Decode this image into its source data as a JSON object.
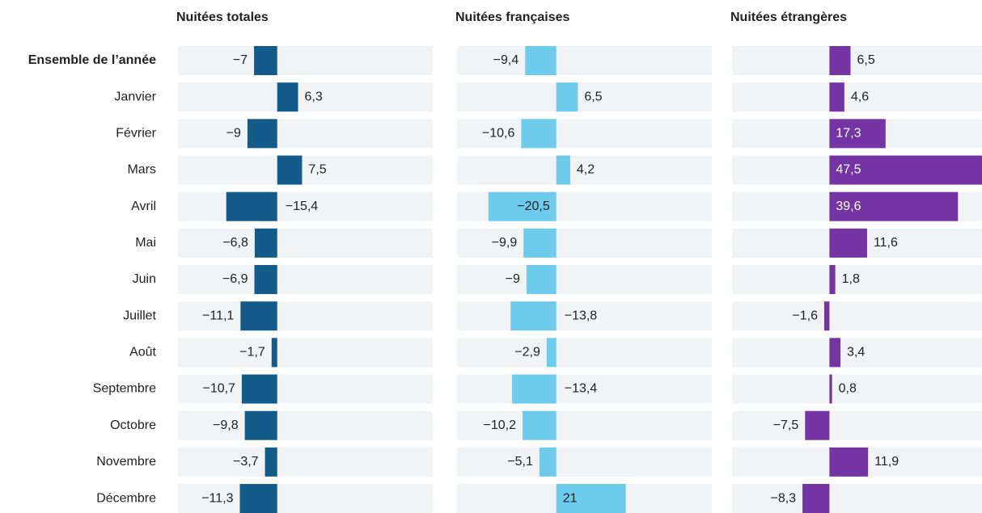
{
  "chart_data": {
    "type": "bar",
    "categories": [
      "Ensemble de l’année",
      "Janvier",
      "Février",
      "Mars",
      "Avril",
      "Mai",
      "Juin",
      "Juillet",
      "Août",
      "Septembre",
      "Octobre",
      "Novembre",
      "Décembre"
    ],
    "xlim": [
      -30,
      47
    ],
    "series": [
      {
        "name": "Nuitées totales",
        "color": "#135b8a",
        "values": [
          -7,
          6.3,
          -9,
          7.5,
          -15.4,
          -6.8,
          -6.9,
          -11.1,
          -1.7,
          -10.7,
          -9.8,
          -3.7,
          -11.3
        ],
        "value_labels": [
          "−7",
          "6,3",
          "−9",
          "7,5",
          "−15,4",
          "−6,8",
          "−6,9",
          "−11,1",
          "−1,7",
          "−10,7",
          "−9,8",
          "−3,7",
          "−11,3"
        ]
      },
      {
        "name": "Nuitées françaises",
        "color": "#6dcbeb",
        "values": [
          -9.4,
          6.5,
          -10.6,
          4.2,
          -20.5,
          -9.9,
          -9,
          -13.8,
          -2.9,
          -13.4,
          -10.2,
          -5.1,
          21
        ],
        "value_labels": [
          "−9,4",
          "6,5",
          "−10,6",
          "4,2",
          "−20,5",
          "−9,9",
          "−9",
          "−13,8",
          "−2,9",
          "−13,4",
          "−10,2",
          "−5,1",
          "21"
        ]
      },
      {
        "name": "Nuitées étrangères",
        "color": "#7434a3",
        "values": [
          6.5,
          4.6,
          17.3,
          47.5,
          39.6,
          11.6,
          1.8,
          -1.6,
          3.4,
          0.8,
          -7.5,
          11.9,
          -8.3
        ],
        "value_labels": [
          "6,5",
          "4,6",
          "17,3",
          "47,5",
          "39,6",
          "11,6",
          "1,8",
          "−1,6",
          "3,4",
          "0,8",
          "−7,5",
          "11,9",
          "−8,3"
        ]
      }
    ]
  }
}
